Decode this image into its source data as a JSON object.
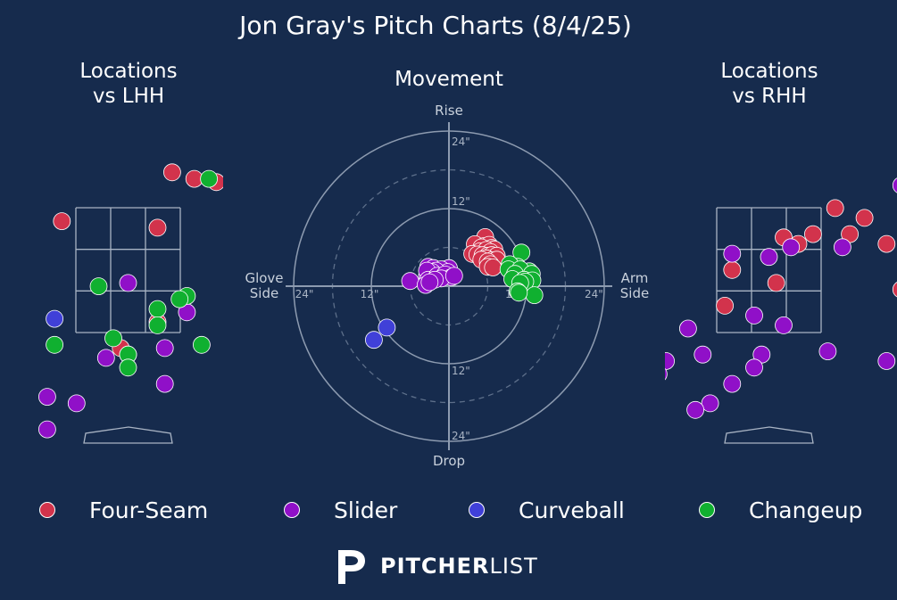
{
  "chart_data": {
    "type": "scatter",
    "title": "Jon Gray's Pitch Charts (8/4/25)",
    "panels": {
      "lhh": {
        "title": "Locations\nvs LHH"
      },
      "movement": {
        "title": "Movement",
        "axis_labels": {
          "top": "Rise",
          "bottom": "Drop",
          "left": "Glove\nSide",
          "right": "Arm\nSide"
        },
        "ring_labels": [
          "12\"",
          "24\""
        ],
        "rings": [
          12,
          24
        ],
        "range": 24
      },
      "rhh": {
        "title": "Locations\nvs RHH"
      }
    },
    "series": [
      {
        "name": "Four-Seam",
        "color": "#d2334c",
        "lhh": [
          [
            0.6,
            3.9
          ],
          [
            0.9,
            3.8
          ],
          [
            1.2,
            3.75
          ],
          [
            -0.9,
            3.15
          ],
          [
            0.4,
            3.05
          ],
          [
            2.1,
            2.75
          ],
          [
            -2.3,
            1.4
          ],
          [
            0.4,
            1.6
          ],
          [
            -0.1,
            1.2
          ]
        ],
        "rhh": [
          [
            2.0,
            4.1
          ],
          [
            0.9,
            3.35
          ],
          [
            1.3,
            3.2
          ],
          [
            0.6,
            2.95
          ],
          [
            1.1,
            2.95
          ],
          [
            0.2,
            2.9
          ],
          [
            0.4,
            2.8
          ],
          [
            1.6,
            2.8
          ],
          [
            -0.5,
            2.4
          ],
          [
            0.1,
            2.2
          ],
          [
            1.8,
            2.1
          ],
          [
            -0.6,
            1.85
          ],
          [
            4.1,
            2.85
          ]
        ],
        "mvmt": [
          [
            5.6,
            7.6
          ],
          [
            4.0,
            6.5
          ],
          [
            5.4,
            6.2
          ],
          [
            6.2,
            6.4
          ],
          [
            6.6,
            5.9
          ],
          [
            5.0,
            6.0
          ],
          [
            7.0,
            5.7
          ],
          [
            4.8,
            5.4
          ],
          [
            5.8,
            5.6
          ],
          [
            6.4,
            5.3
          ],
          [
            3.6,
            5.0
          ],
          [
            4.4,
            4.9
          ],
          [
            5.2,
            4.8
          ],
          [
            6.0,
            4.7
          ],
          [
            6.6,
            4.8
          ],
          [
            7.4,
            4.7
          ],
          [
            5.8,
            4.3
          ],
          [
            5.0,
            4.1
          ],
          [
            6.6,
            4.0
          ],
          [
            7.4,
            4.1
          ],
          [
            6.0,
            3.8
          ],
          [
            6.4,
            3.4
          ],
          [
            6.0,
            3.0
          ],
          [
            6.8,
            2.9
          ]
        ]
      },
      {
        "name": "Slider",
        "color": "#9010c8",
        "lhh": [
          [
            0.0,
            2.2
          ],
          [
            0.8,
            1.75
          ],
          [
            2.9,
            2.15
          ],
          [
            0.0,
            1.1
          ],
          [
            -0.3,
            1.05
          ],
          [
            0.5,
            1.2
          ],
          [
            -1.1,
            0.45
          ],
          [
            -0.7,
            0.35
          ],
          [
            -1.1,
            -0.05
          ],
          [
            0.5,
            0.65
          ]
        ],
        "rhh": [
          [
            1.8,
            3.7
          ],
          [
            -0.5,
            2.65
          ],
          [
            0.0,
            2.6
          ],
          [
            0.3,
            2.75
          ],
          [
            1.0,
            2.75
          ],
          [
            2.1,
            2.45
          ],
          [
            -0.2,
            1.7
          ],
          [
            -1.1,
            1.5
          ],
          [
            0.2,
            1.55
          ],
          [
            -0.1,
            1.1
          ],
          [
            -0.9,
            1.1
          ],
          [
            -1.4,
            1.0
          ],
          [
            0.8,
            1.15
          ],
          [
            2.0,
            1.2
          ],
          [
            1.6,
            1.0
          ],
          [
            -0.2,
            0.9
          ],
          [
            -0.5,
            0.65
          ],
          [
            -1.6,
            0.65
          ],
          [
            -0.8,
            0.35
          ],
          [
            -1.0,
            0.25
          ],
          [
            -1.5,
            0.8
          ]
        ],
        "mvmt": [
          [
            -0.8,
            2.6
          ],
          [
            0.0,
            2.8
          ],
          [
            -3.4,
            1.6
          ],
          [
            -2.0,
            1.4
          ],
          [
            -3.2,
            3.0
          ],
          [
            -2.4,
            2.8
          ],
          [
            -1.2,
            2.6
          ],
          [
            -0.2,
            2.2
          ],
          [
            -2.0,
            2.4
          ],
          [
            -2.6,
            2.2
          ],
          [
            -3.4,
            2.4
          ],
          [
            -3.2,
            1.0
          ],
          [
            -1.8,
            1.6
          ],
          [
            -0.6,
            1.8
          ],
          [
            0.4,
            1.4
          ],
          [
            -1.2,
            1.2
          ],
          [
            -2.2,
            1.0
          ],
          [
            -6.0,
            0.8
          ],
          [
            -3.6,
            0.2
          ],
          [
            -3.0,
            0.6
          ],
          [
            0.8,
            1.6
          ]
        ]
      },
      {
        "name": "Curveball",
        "color": "#4040d8",
        "lhh": [
          [
            1.7,
            1.9
          ],
          [
            -1.0,
            1.65
          ]
        ],
        "rhh": [],
        "mvmt": [
          [
            -9.6,
            -6.4
          ],
          [
            -11.6,
            -8.3
          ]
        ]
      },
      {
        "name": "Changeup",
        "color": "#10b030",
        "lhh": [
          [
            1.1,
            3.8
          ],
          [
            -0.4,
            2.15
          ],
          [
            0.8,
            2.0
          ],
          [
            0.7,
            1.95
          ],
          [
            0.4,
            1.8
          ],
          [
            2.9,
            2.05
          ],
          [
            0.4,
            1.55
          ],
          [
            -0.2,
            1.35
          ],
          [
            -1.0,
            1.25
          ],
          [
            1.0,
            1.25
          ],
          [
            0.0,
            1.1
          ],
          [
            0.0,
            0.9
          ]
        ],
        "rhh": [],
        "mvmt": [
          [
            11.2,
            5.2
          ],
          [
            10.6,
            3.0
          ],
          [
            9.4,
            3.4
          ],
          [
            12.4,
            2.3
          ],
          [
            9.2,
            2.6
          ],
          [
            11.0,
            2.6
          ],
          [
            10.2,
            1.9
          ],
          [
            12.8,
            1.9
          ],
          [
            9.8,
            1.1
          ],
          [
            11.6,
            1.0
          ],
          [
            12.9,
            0.9
          ],
          [
            11.8,
            0.7
          ],
          [
            11.0,
            0.5
          ],
          [
            10.6,
            -0.8
          ],
          [
            13.2,
            -1.4
          ],
          [
            10.8,
            -1.0
          ]
        ]
      }
    ]
  },
  "legend": [
    {
      "label": "Four-Seam",
      "color": "#d2334c"
    },
    {
      "label": "Slider",
      "color": "#9010c8"
    },
    {
      "label": "Curveball",
      "color": "#4040d8"
    },
    {
      "label": "Changeup",
      "color": "#10b030"
    }
  ],
  "brand": {
    "bold": "PITCHER",
    "light": "LIST"
  }
}
